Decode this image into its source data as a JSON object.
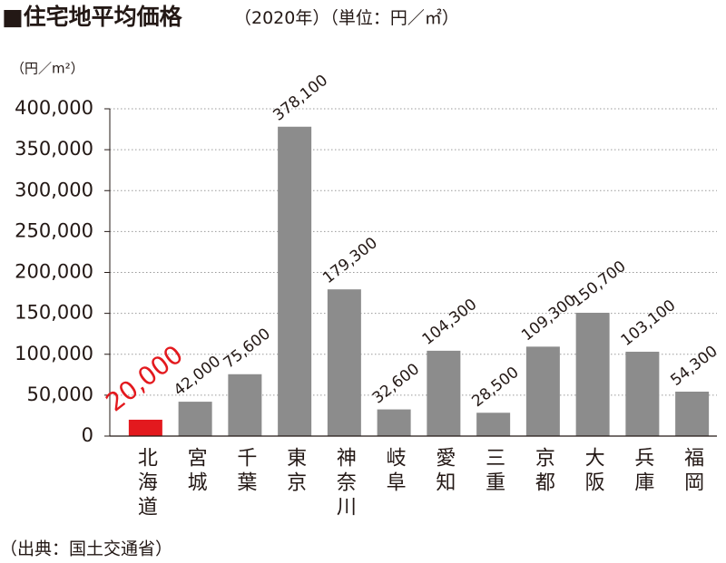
{
  "chart_data": {
    "type": "bar",
    "title": "■住宅地平均価格",
    "subtitle": "（2020年）（単位：円／㎡）",
    "y_label": "（円／m²）",
    "source": "（出典：国土交通省）",
    "categories": [
      "北海道",
      "宮城",
      "千葉",
      "東京",
      "神奈川",
      "岐阜",
      "愛知",
      "三重",
      "京都",
      "大阪",
      "兵庫",
      "福岡"
    ],
    "values": [
      20000,
      42000,
      75600,
      378100,
      179300,
      32600,
      104300,
      28500,
      109300,
      150700,
      103100,
      54300
    ],
    "value_labels": [
      "20,000",
      "42,000",
      "75,600",
      "378,100",
      "179,300",
      "32,600",
      "104,300",
      "28,500",
      "109,300",
      "150,700",
      "103,100",
      "54,300"
    ],
    "colors": [
      "#e3191e",
      "#8c8c8c",
      "#8c8c8c",
      "#8c8c8c",
      "#8c8c8c",
      "#8c8c8c",
      "#8c8c8c",
      "#8c8c8c",
      "#8c8c8c",
      "#8c8c8c",
      "#8c8c8c",
      "#8c8c8c"
    ],
    "highlight": 0,
    "ylim": [
      0,
      400000
    ],
    "yticks": [
      0,
      {
        "value": 50000,
        "label": "50,000"
      },
      {
        "value": 100000,
        "label": "100,000"
      },
      {
        "value": 150000,
        "label": "150,000"
      },
      {
        "value": 200000,
        "label": "200,000"
      },
      {
        "value": 250000,
        "label": "250,000"
      },
      {
        "value": 300000,
        "label": "300,000"
      },
      {
        "value": 350000,
        "label": "350,000"
      },
      {
        "value": 400000,
        "label": "400,000"
      }
    ],
    "grid": true
  }
}
